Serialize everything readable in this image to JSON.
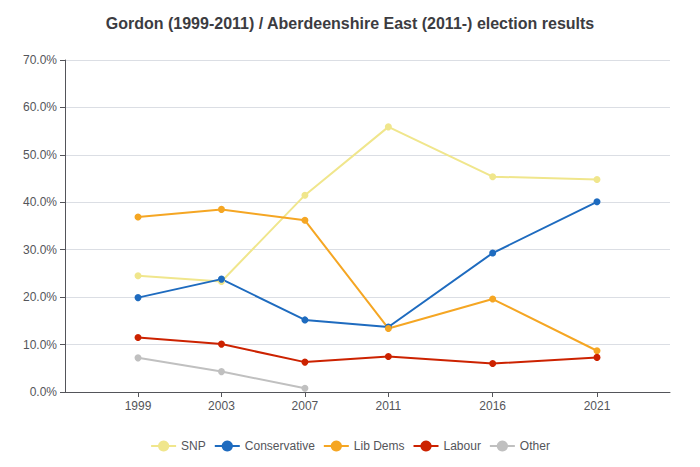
{
  "chart_data": {
    "type": "line",
    "title": "Gordon (1999-2011) / Aberdeenshire East (2011-) election results",
    "x": [
      1999,
      2003,
      2007,
      2011,
      2016,
      2021
    ],
    "series": [
      {
        "name": "SNP",
        "color": "#f0e68c",
        "marker": "circle",
        "values": [
          0.245,
          0.233,
          0.415,
          0.559,
          0.454,
          0.448
        ]
      },
      {
        "name": "Conservative",
        "color": "#1e6bbf",
        "marker": "circle",
        "values": [
          0.199,
          0.238,
          0.152,
          0.137,
          0.293,
          0.401
        ]
      },
      {
        "name": "Lib Dems",
        "color": "#f5a623",
        "marker": "circle",
        "values": [
          0.369,
          0.385,
          0.362,
          0.134,
          0.196,
          0.087
        ]
      },
      {
        "name": "Labour",
        "color": "#cc2200",
        "marker": "circle",
        "values": [
          0.115,
          0.101,
          0.063,
          0.075,
          0.06,
          0.073
        ]
      },
      {
        "name": "Other",
        "color": "#c0c0c0",
        "marker": "circle",
        "values": [
          0.072,
          0.043,
          0.008,
          null,
          null,
          null
        ]
      }
    ],
    "xlim": [
      1995.5,
      2024.5
    ],
    "xticks": [
      1999,
      2003,
      2007,
      2011,
      2016,
      2021
    ],
    "ylim": [
      0.0,
      0.7
    ],
    "yticks": [
      {
        "value": 0.0,
        "label": "0.0%"
      },
      {
        "value": 0.1,
        "label": "10.0%"
      },
      {
        "value": 0.2,
        "label": "20.0%"
      },
      {
        "value": 0.3,
        "label": "30.0%"
      },
      {
        "value": 0.4,
        "label": "40.0%"
      },
      {
        "value": 0.5,
        "label": "50.0%"
      },
      {
        "value": 0.6,
        "label": "60.0%"
      },
      {
        "value": 0.7,
        "label": "70.0%"
      }
    ],
    "grid": true,
    "legend": "bottom"
  }
}
